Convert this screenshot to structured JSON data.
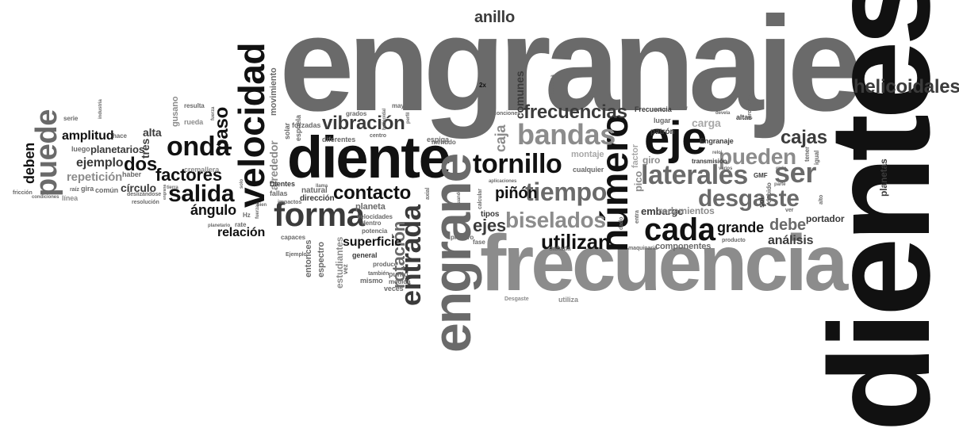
{
  "words": {
    "engranaje": "engranaje",
    "dientes": "dientes",
    "frecuencia": "frecuencia",
    "diente": "diente",
    "engrane": "engrane",
    "velocidad": "velocidad",
    "numero": "número",
    "eje": "eje",
    "forma": "forma",
    "cada": "cada",
    "tornillo": "tornillo",
    "bandas": "bandas",
    "laterales": "laterales",
    "entrada": "entrada",
    "onda": "onda",
    "puede": "puede",
    "tiempo": "tiempo",
    "frecuencias": "frecuencias",
    "biselados": "biselados",
    "ser": "ser",
    "pueden": "pueden",
    "desgaste": "desgaste",
    "contacto": "contacto",
    "salida": "salida",
    "factores": "factores",
    "helicoidales": "helicoidales",
    "vibracion": "vibración",
    "utilizan": "utilizan",
    "paso": "paso",
    "cajas": "cajas",
    "rotacion": "rotación",
    "ejes": "ejes",
    "anillo": "anillo",
    "pinon": "piñón",
    "angulo": "ángulo",
    "relacion": "relación",
    "debe": "debe",
    "grande": "grande",
    "analisis": "análisis",
    "superficie": "superficie",
    "dos": "dos",
    "amplitud": "amplitud",
    "deben": "deben",
    "ejemplo": "ejemplo",
    "planetarios": "planetarios",
    "repeticion": "repetición",
    "circulo": "círculo",
    "alta": "alta",
    "comunes": "comunes",
    "caja": "caja",
    "tres": "tres",
    "gusano": "gusano",
    "alrededor": "alrededor",
    "movimiento": "movimiento",
    "carga": "carga",
    "embargo": "embargo",
    "rodamientos": "rodamientos",
    "montaje": "montaje",
    "pico": "pico",
    "factor": "factor",
    "giro": "giro",
    "planetas": "planetas",
    "portador": "portador",
    "componentes": "componentes",
    "estudiantes": "estudiantes",
    "entonces": "entonces",
    "espectro": "espectro",
    "tipos": "tipos",
    "planeta": "planeta",
    "direccion": "dirección",
    "natural": "natural",
    "diferentes": "diferentes",
    "espiga": "espiga",
    "forzadas": "forzadas",
    "solar": "solar",
    "espuela": "espuela",
    "cremallera": "cremallera",
    "rueda": "rueda",
    "haber": "haber",
    "linea": "línea",
    "comun": "común",
    "gira": "gira",
    "luego": "luego",
    "serie": "serie",
    "hace": "hace",
    "lugar": "lugar",
    "patron": "patrón",
    "cualquier": "cualquier",
    "fallas": "fallas",
    "dientes_small": "Dientes",
    "engranaje_small": "Engranaje",
    "frecuencia_small": "Frecuencia",
    "resulta": "resulta",
    "grados": "grados",
    "vez": "vez",
    "veces": "veces",
    "mismo": "mismo",
    "punto": "punto",
    "medida": "medida",
    "produce": "produce",
    "general": "general",
    "potencia": "potencia",
    "dentro": "dentro",
    "velocidades": "velocidades",
    "primero": "primero",
    "fase": "fase",
    "utiliza": "utiliza",
    "alto": "alto",
    "sol": "sol",
    "debido": "debido",
    "tener": "tener",
    "igual": "igual",
    "transmision": "transmisión",
    "gmf": "GMF",
    "altas": "altas",
    "problemas": "problemas",
    "capaces": "capaces",
    "rate": "rate",
    "hz": "Hz",
    "impactos": "impactos",
    "tambien": "también",
    "menudo": "menudo",
    "danada": "dañada",
    "maquinaria": "maquinaria",
    "producto": "producto",
    "ver": "ver",
    "causa": "causa",
    "friccion": "fricción",
    "condiciones": "condiciones",
    "raiz": "raíz",
    "deslizandose": "deslizándose",
    "resolucion": "resolución",
    "centro": "centro",
    "mayor": "mayor",
    "perfil": "perfil",
    "helicoidal": "helicoidal",
    "calcular": "calcular",
    "axial": "axial",
    "cuando": "cuando",
    "aplicaciones": "aplicaciones",
    "degaste": "Desgaste",
    "dado": "dado",
    "entra": "entra",
    "dos_x": "2x",
    "conciones": "conciones",
    "radios": "radios",
    "circular": "circular",
    "devela": "devela",
    "esquema": "esquema",
    "ejemplo_small": "Ejemplo",
    "llama": "llama",
    "bien": "bien",
    "industria": "industria",
    "tierra": "tierra",
    "engrana": "engrana",
    "fuerza": "fuerza",
    "fuerzas": "fuerzas",
    "planetario": "planetario",
    "solo": "solo",
    "varios": "varios",
    "ciclo": "ciclo",
    "parte": "parte",
    "reloj": "reloj"
  },
  "colors": {
    "darkest": "#111111",
    "dark": "#3b3b3b",
    "mid": "#6a6a6a",
    "light": "#8c8c8c",
    "lighter": "#a8a8a8",
    "background": "#ffffff"
  }
}
